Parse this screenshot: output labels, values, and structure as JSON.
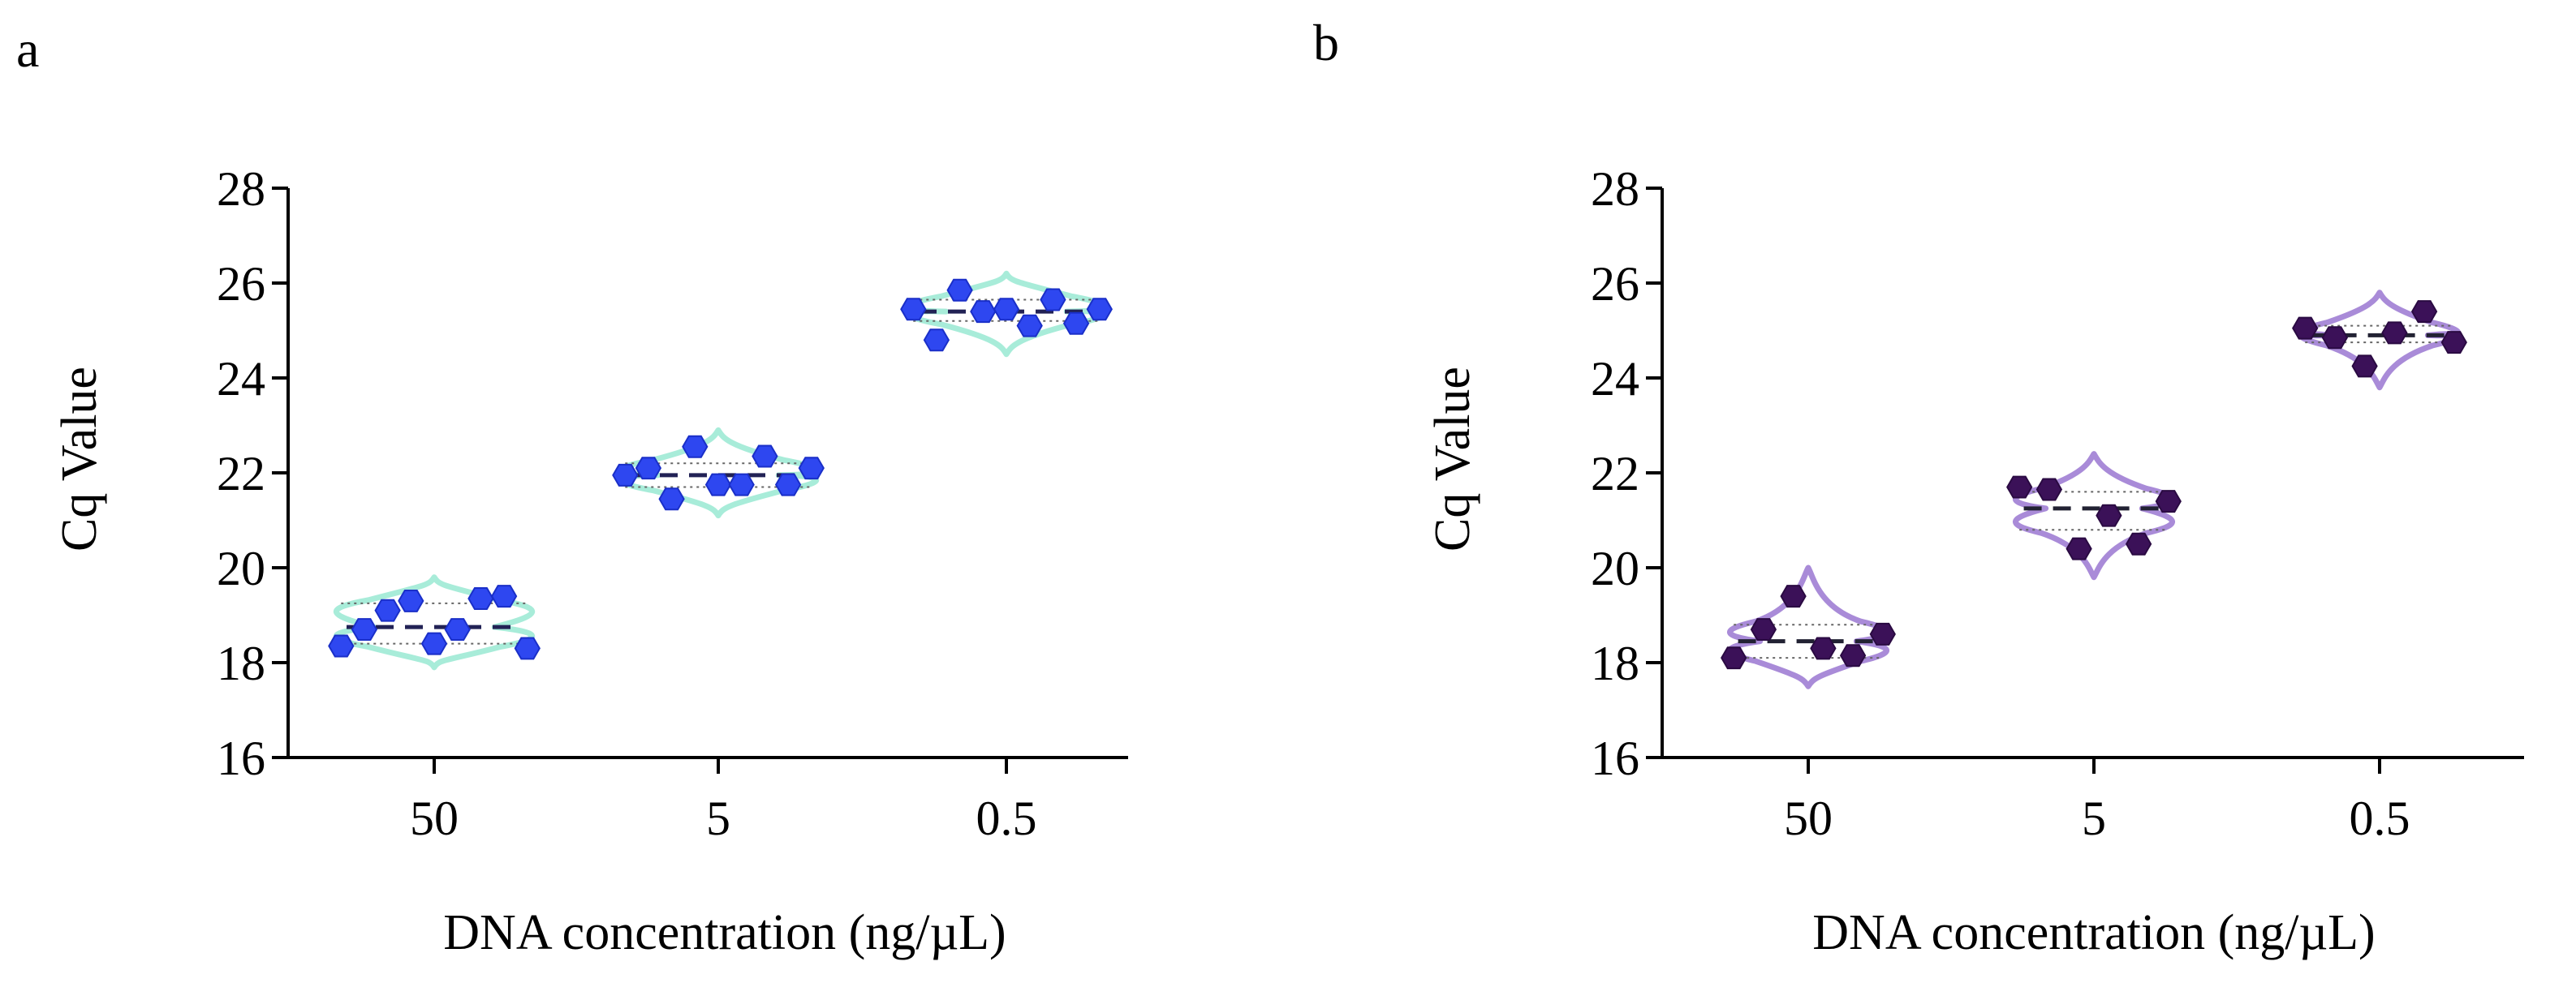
{
  "panels": [
    {
      "label": "a"
    },
    {
      "label": "b"
    }
  ],
  "chart_data": [
    {
      "type": "violin",
      "panel": "a",
      "xlabel": "DNA concentration (ng/µL)",
      "ylabel": "Cq Value",
      "categories": [
        "50",
        "5",
        "0.5"
      ],
      "ylim": [
        16,
        28
      ],
      "yticks": [
        "16",
        "18",
        "20",
        "22",
        "24",
        "26",
        "28"
      ],
      "colors": {
        "violin": "#a8ecd9",
        "point": "#2e47f0",
        "point_edge": "#1a2fc8",
        "median": "#222255"
      },
      "groups": [
        {
          "category": "50",
          "median": 18.75,
          "q1": 18.4,
          "q3": 19.25,
          "violin_min": 17.9,
          "violin_max": 19.8,
          "points": [
            18.35,
            18.7,
            19.1,
            19.3,
            18.4,
            18.7,
            19.35,
            19.4,
            18.3
          ]
        },
        {
          "category": "5",
          "median": 21.95,
          "q1": 21.7,
          "q3": 22.2,
          "violin_min": 21.1,
          "violin_max": 22.9,
          "points": [
            21.95,
            22.1,
            21.45,
            22.55,
            21.75,
            21.75,
            22.35,
            21.75,
            22.1
          ]
        },
        {
          "category": "0.5",
          "median": 25.4,
          "q1": 25.2,
          "q3": 25.65,
          "violin_min": 24.5,
          "violin_max": 26.2,
          "points": [
            25.45,
            24.8,
            25.85,
            25.4,
            25.45,
            25.1,
            25.65,
            25.15,
            25.45
          ]
        }
      ]
    },
    {
      "type": "violin",
      "panel": "b",
      "xlabel": "DNA concentration (ng/µL)",
      "ylabel": "Cq Value",
      "categories": [
        "50",
        "5",
        "0.5"
      ],
      "ylim": [
        16,
        28
      ],
      "yticks": [
        "16",
        "18",
        "20",
        "22",
        "24",
        "26",
        "28"
      ],
      "colors": {
        "violin": "#a98bd8",
        "point": "#3b1158",
        "point_edge": "#2a0a42",
        "median": "#222233"
      },
      "groups": [
        {
          "category": "50",
          "median": 18.45,
          "q1": 18.1,
          "q3": 18.8,
          "violin_min": 17.5,
          "violin_max": 20.0,
          "points": [
            18.1,
            18.7,
            19.4,
            18.3,
            18.15,
            18.6
          ]
        },
        {
          "category": "5",
          "median": 21.25,
          "q1": 20.8,
          "q3": 21.6,
          "violin_min": 19.8,
          "violin_max": 22.4,
          "points": [
            21.7,
            21.65,
            20.4,
            21.1,
            20.5,
            21.4
          ]
        },
        {
          "category": "0.5",
          "median": 24.9,
          "q1": 24.75,
          "q3": 25.1,
          "violin_min": 23.8,
          "violin_max": 25.8,
          "points": [
            25.05,
            24.85,
            24.25,
            24.95,
            25.4,
            24.75
          ]
        }
      ]
    }
  ]
}
